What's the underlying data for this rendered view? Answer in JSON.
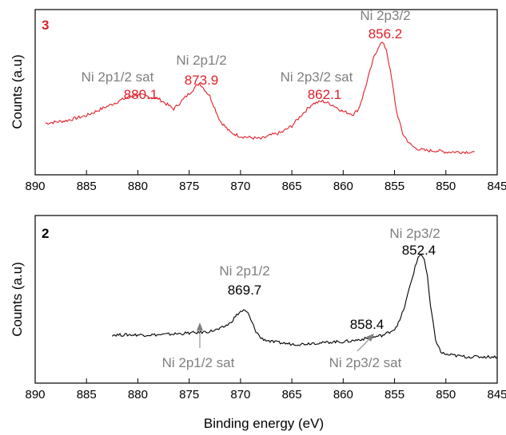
{
  "chart_data": [
    {
      "type": "line",
      "panel_label": "3",
      "panel_label_color": "#e0202a",
      "line_color": "#e0202a",
      "value_color": "#e0202a",
      "xlabel": "",
      "ylabel": "Counts (a.u)",
      "xlim": [
        890,
        845
      ],
      "ylim": [
        0,
        100
      ],
      "x_ticks": [
        890,
        885,
        880,
        875,
        870,
        865,
        860,
        855,
        850,
        845
      ],
      "series": [
        {
          "x": [
            889,
            887,
            885,
            883,
            881,
            880,
            878,
            876.5,
            875,
            874,
            873,
            872,
            871,
            870,
            869,
            868,
            867,
            866,
            865,
            864,
            863,
            862,
            861,
            860,
            859,
            858.5,
            858,
            857.5,
            857,
            856.5,
            856.2,
            855.8,
            855.3,
            854.8,
            854.2,
            853.5,
            853,
            852,
            851,
            850,
            849,
            848,
            847.2
          ],
          "y": [
            31,
            33,
            37,
            44,
            51,
            53,
            50,
            42,
            54,
            62,
            52,
            33,
            24,
            21,
            20,
            19,
            22,
            24,
            29,
            38,
            46,
            48,
            45,
            40,
            38,
            42,
            54,
            68,
            82,
            91,
            93,
            88,
            66,
            40,
            23,
            15,
            12,
            10,
            10,
            9,
            9,
            9,
            9
          ]
        }
      ],
      "peaks": [
        {
          "name": "Ni 2p1/2 sat",
          "value": "880.1"
        },
        {
          "name": "Ni 2p1/2",
          "value": "873.9"
        },
        {
          "name": "Ni 2p3/2 sat",
          "value": "862.1"
        },
        {
          "name": "Ni 2p3/2",
          "value": "856.2"
        }
      ]
    },
    {
      "type": "line",
      "panel_label": "2",
      "panel_label_color": "#000000",
      "line_color": "#000000",
      "value_color": "#000000",
      "xlabel": "Binding energy (eV)",
      "ylabel": "Counts (a.u)",
      "xlim": [
        890,
        845
      ],
      "ylim": [
        0,
        100
      ],
      "x_ticks": [
        890,
        885,
        880,
        875,
        870,
        865,
        860,
        855,
        850,
        845
      ],
      "series": [
        {
          "x": [
            882.5,
            880,
            878,
            876,
            874,
            873,
            872,
            871,
            870.5,
            870,
            869.7,
            869.3,
            869,
            868.5,
            868,
            867,
            866,
            865,
            864,
            863,
            862,
            861,
            860,
            859,
            858.4,
            857.5,
            857,
            856,
            855,
            854.5,
            854,
            853.5,
            853,
            852.7,
            852.4,
            852.1,
            851.8,
            851.5,
            851,
            850.5,
            850,
            849,
            848,
            847,
            846,
            845
          ],
          "y": [
            30,
            30,
            30,
            31,
            32,
            33,
            35,
            40,
            46,
            50,
            51,
            49,
            43,
            33,
            27,
            24,
            23,
            22,
            22,
            23,
            23,
            24,
            24,
            25,
            26,
            27,
            28,
            30,
            35,
            42,
            55,
            72,
            88,
            97,
            100,
            95,
            80,
            55,
            26,
            15,
            13,
            12,
            11,
            11,
            11,
            11
          ]
        }
      ],
      "peaks": [
        {
          "name": "Ni 2p1/2",
          "value": "869.7"
        },
        {
          "name": "Ni 2p3/2",
          "value": "852.4"
        },
        {
          "name": "",
          "value": "858.4"
        }
      ],
      "sat_labels": [
        {
          "name": "Ni 2p1/2 sat",
          "points_to": 874
        },
        {
          "name": "Ni 2p3/2 sat",
          "points_to": 856.5
        }
      ]
    }
  ]
}
